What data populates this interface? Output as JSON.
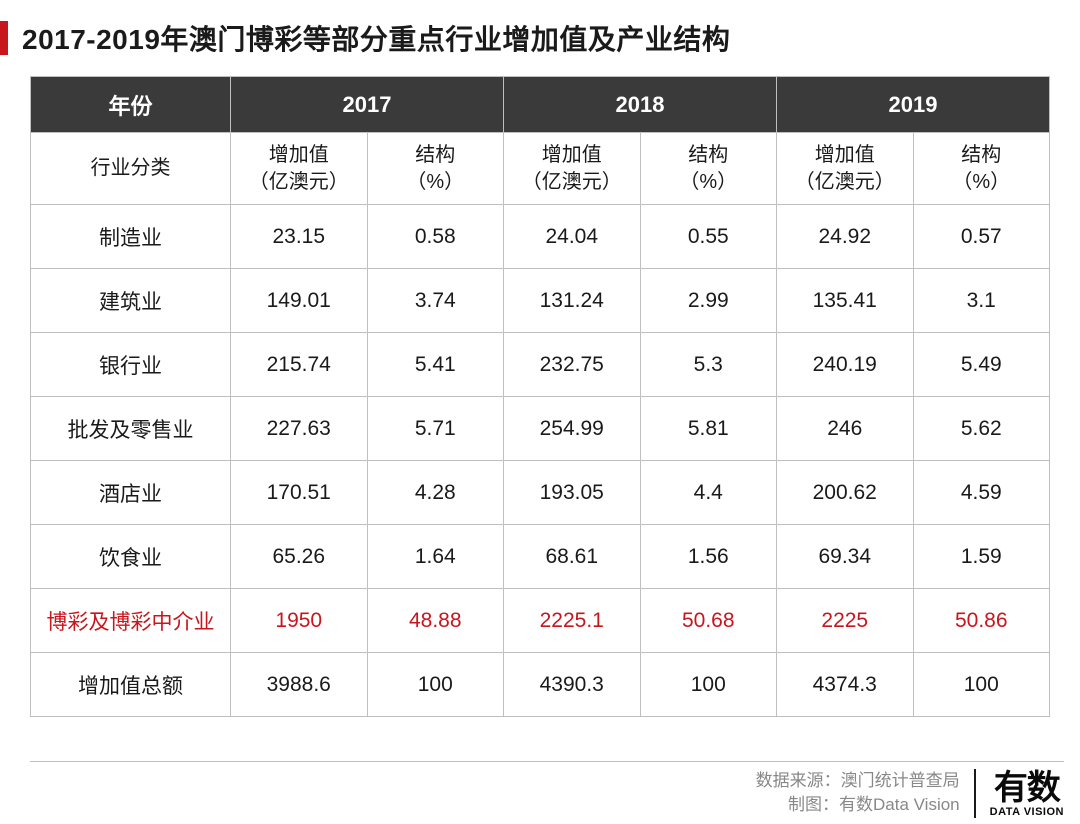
{
  "title": "2017-2019年澳门博彩等部分重点行业增加值及产业结构",
  "accent_color": "#c8161d",
  "header_bg": "#3a3a3a",
  "header_fg": "#ffffff",
  "border_color": "#bfbfbf",
  "text_color": "#1a1a1a",
  "highlight_color": "#c8161d",
  "table": {
    "year_label": "年份",
    "years": [
      "2017",
      "2018",
      "2019"
    ],
    "category_label": "行业分类",
    "sub_headers": {
      "value": "增加值\n（亿澳元）",
      "pct": "结构\n（%）"
    },
    "rows": [
      {
        "label": "制造业",
        "v2017": "23.15",
        "p2017": "0.58",
        "v2018": "24.04",
        "p2018": "0.55",
        "v2019": "24.92",
        "p2019": "0.57",
        "highlight": false
      },
      {
        "label": "建筑业",
        "v2017": "149.01",
        "p2017": "3.74",
        "v2018": "131.24",
        "p2018": "2.99",
        "v2019": "135.41",
        "p2019": "3.1",
        "highlight": false
      },
      {
        "label": "银行业",
        "v2017": "215.74",
        "p2017": "5.41",
        "v2018": "232.75",
        "p2018": "5.3",
        "v2019": "240.19",
        "p2019": "5.49",
        "highlight": false
      },
      {
        "label": "批发及零售业",
        "v2017": "227.63",
        "p2017": "5.71",
        "v2018": "254.99",
        "p2018": "5.81",
        "v2019": "246",
        "p2019": "5.62",
        "highlight": false
      },
      {
        "label": "酒店业",
        "v2017": "170.51",
        "p2017": "4.28",
        "v2018": "193.05",
        "p2018": "4.4",
        "v2019": "200.62",
        "p2019": "4.59",
        "highlight": false
      },
      {
        "label": "饮食业",
        "v2017": "65.26",
        "p2017": "1.64",
        "v2018": "68.61",
        "p2018": "1.56",
        "v2019": "69.34",
        "p2019": "1.59",
        "highlight": false
      },
      {
        "label": "博彩及博彩中介业",
        "v2017": "1950",
        "p2017": "48.88",
        "v2018": "2225.1",
        "p2018": "50.68",
        "v2019": "2225",
        "p2019": "50.86",
        "highlight": true
      },
      {
        "label": "增加值总额",
        "v2017": "3988.6",
        "p2017": "100",
        "v2018": "4390.3",
        "p2018": "100",
        "v2019": "4374.3",
        "p2019": "100",
        "highlight": false
      }
    ]
  },
  "footer": {
    "source_label": "数据来源：",
    "source_value": "澳门统计普查局",
    "credit_label": "制图：",
    "credit_value": "有数Data Vision",
    "brand_cn": "有数",
    "brand_en": "DATA VISION"
  }
}
